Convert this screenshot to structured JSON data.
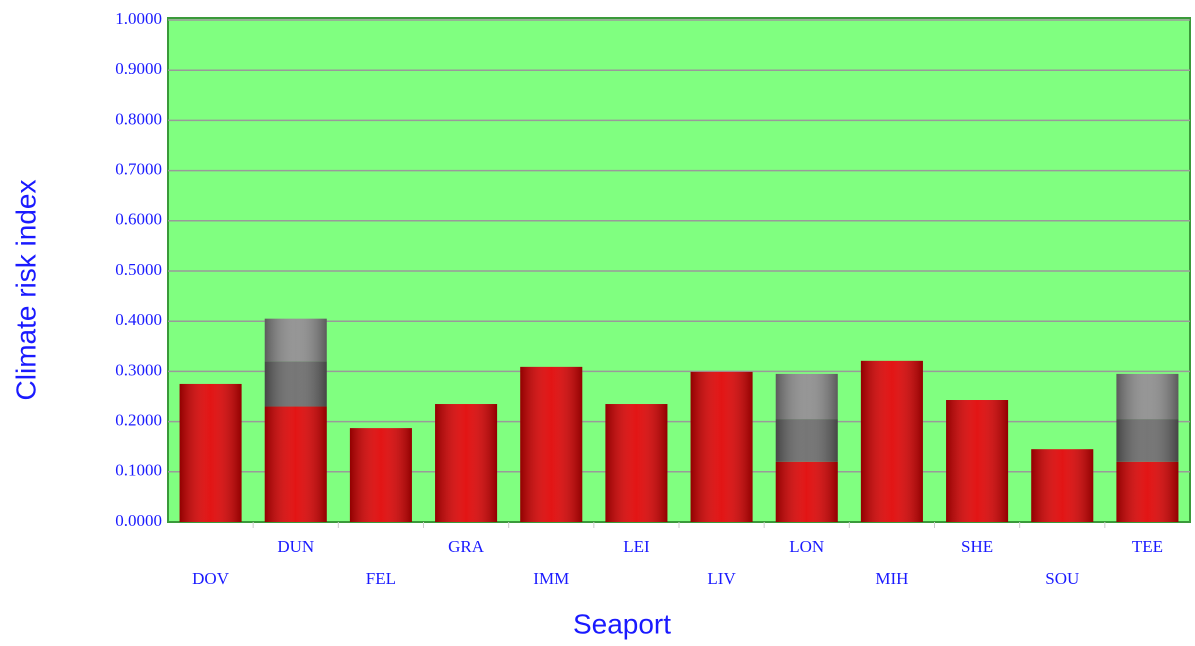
{
  "chart_data": {
    "type": "bar",
    "stacked": true,
    "x_label": "Seaport",
    "y_label": "Climate risk index",
    "categories": [
      "DOV",
      "DUN",
      "FEL",
      "GRA",
      "IMM",
      "LEI",
      "LIV",
      "LON",
      "MIH",
      "SHE",
      "SOU",
      "TEE"
    ],
    "series": [
      {
        "color": "#e00000",
        "values": [
          0.275,
          0.23,
          0.187,
          0.235,
          0.309,
          0.235,
          0.299,
          0.12,
          0.321,
          0.243,
          0.145,
          0.12
        ]
      },
      {
        "color": "#6a6a6a",
        "values": [
          null,
          0.09,
          null,
          null,
          null,
          null,
          null,
          0.085,
          null,
          null,
          null,
          0.085
        ]
      },
      {
        "color": "#8c8c8c",
        "values": [
          null,
          0.085,
          null,
          null,
          null,
          null,
          null,
          0.09,
          null,
          null,
          null,
          0.09
        ]
      }
    ],
    "ylim": [
      0,
      1
    ],
    "yticks": [
      {
        "value": 0,
        "label": "0.0000"
      },
      {
        "value": 0.1,
        "label": "0.1000"
      },
      {
        "value": 0.2,
        "label": "0.2000"
      },
      {
        "value": 0.3,
        "label": "0.3000"
      },
      {
        "value": 0.4,
        "label": "0.4000"
      },
      {
        "value": 0.5,
        "label": "0.5000"
      },
      {
        "value": 0.6,
        "label": "0.6000"
      },
      {
        "value": 0.7,
        "label": "0.7000"
      },
      {
        "value": 0.8,
        "label": "0.8000"
      },
      {
        "value": 0.9,
        "label": "0.9000"
      },
      {
        "value": 1,
        "label": "1.0000"
      }
    ],
    "grid": true,
    "plot_background": "#80ff80"
  }
}
